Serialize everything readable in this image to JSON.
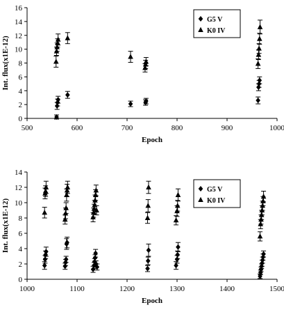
{
  "chart_data": [
    {
      "type": "scatter",
      "xlabel": "Epoch",
      "ylabel": "Int. flux(x1E-12)",
      "xlim": [
        500,
        1000
      ],
      "ylim": [
        0,
        16
      ],
      "xticks": [
        500,
        600,
        700,
        800,
        900,
        1000
      ],
      "yticks": [
        0,
        2,
        4,
        6,
        8,
        10,
        12,
        14,
        16
      ],
      "legend_position": "top-right",
      "series": [
        {
          "name": "G5 V",
          "marker": "diamond",
          "points": [
            {
              "x": 559,
              "y": 0.2,
              "err": 0.3
            },
            {
              "x": 560,
              "y": 1.8,
              "err": 0.5
            },
            {
              "x": 561,
              "y": 2.3,
              "err": 0.5
            },
            {
              "x": 562,
              "y": 2.7,
              "err": 0.5
            },
            {
              "x": 581,
              "y": 3.4,
              "err": 0.5
            },
            {
              "x": 707,
              "y": 2.1,
              "err": 0.4
            },
            {
              "x": 737,
              "y": 2.3,
              "err": 0.4
            },
            {
              "x": 738,
              "y": 2.5,
              "err": 0.4
            },
            {
              "x": 962,
              "y": 2.6,
              "err": 0.5
            },
            {
              "x": 963,
              "y": 4.5,
              "err": 0.5
            },
            {
              "x": 964,
              "y": 5.0,
              "err": 0.5
            },
            {
              "x": 965,
              "y": 5.5,
              "err": 0.5
            }
          ]
        },
        {
          "name": "K0 IV",
          "marker": "triangle",
          "points": [
            {
              "x": 558,
              "y": 8.2,
              "err": 0.8
            },
            {
              "x": 559,
              "y": 9.7,
              "err": 0.6
            },
            {
              "x": 560,
              "y": 10.3,
              "err": 0.6
            },
            {
              "x": 561,
              "y": 10.9,
              "err": 0.6
            },
            {
              "x": 562,
              "y": 11.4,
              "err": 0.8
            },
            {
              "x": 581,
              "y": 11.6,
              "err": 0.8
            },
            {
              "x": 707,
              "y": 8.9,
              "err": 0.8
            },
            {
              "x": 736,
              "y": 7.3,
              "err": 0.6
            },
            {
              "x": 737,
              "y": 7.8,
              "err": 0.6
            },
            {
              "x": 738,
              "y": 8.2,
              "err": 0.6
            },
            {
              "x": 962,
              "y": 7.9,
              "err": 0.7
            },
            {
              "x": 963,
              "y": 9.2,
              "err": 0.7
            },
            {
              "x": 964,
              "y": 10.1,
              "err": 0.7
            },
            {
              "x": 965,
              "y": 11.5,
              "err": 0.8
            },
            {
              "x": 966,
              "y": 13.2,
              "err": 1.0
            }
          ]
        }
      ]
    },
    {
      "type": "scatter",
      "xlabel": "Epoch",
      "ylabel": "Int. flux(x1E-12)",
      "xlim": [
        1000,
        1500
      ],
      "ylim": [
        0,
        14
      ],
      "xticks": [
        1000,
        1100,
        1200,
        1300,
        1400,
        1500
      ],
      "yticks": [
        0,
        2,
        4,
        6,
        8,
        10,
        12,
        14
      ],
      "legend_position": "top-right",
      "series": [
        {
          "name": "G5 V",
          "marker": "diamond",
          "points": [
            {
              "x": 1035,
              "y": 1.8,
              "err": 0.5
            },
            {
              "x": 1036,
              "y": 2.6,
              "err": 0.5
            },
            {
              "x": 1037,
              "y": 3.2,
              "err": 0.5
            },
            {
              "x": 1038,
              "y": 3.6,
              "err": 0.6
            },
            {
              "x": 1076,
              "y": 1.7,
              "err": 0.4
            },
            {
              "x": 1077,
              "y": 2.2,
              "err": 0.4
            },
            {
              "x": 1078,
              "y": 2.6,
              "err": 0.4
            },
            {
              "x": 1079,
              "y": 4.6,
              "err": 0.7
            },
            {
              "x": 1080,
              "y": 4.8,
              "err": 0.7
            },
            {
              "x": 1132,
              "y": 1.3,
              "err": 0.4
            },
            {
              "x": 1134,
              "y": 1.8,
              "err": 0.4
            },
            {
              "x": 1135,
              "y": 2.3,
              "err": 0.4
            },
            {
              "x": 1136,
              "y": 2.8,
              "err": 0.4
            },
            {
              "x": 1137,
              "y": 3.4,
              "err": 0.5
            },
            {
              "x": 1138,
              "y": 2.0,
              "err": 0.4
            },
            {
              "x": 1140,
              "y": 1.6,
              "err": 0.4
            },
            {
              "x": 1241,
              "y": 1.4,
              "err": 0.4
            },
            {
              "x": 1242,
              "y": 2.4,
              "err": 0.5
            },
            {
              "x": 1243,
              "y": 3.8,
              "err": 0.8
            },
            {
              "x": 1298,
              "y": 1.8,
              "err": 0.5
            },
            {
              "x": 1300,
              "y": 2.6,
              "err": 0.5
            },
            {
              "x": 1301,
              "y": 3.2,
              "err": 0.5
            },
            {
              "x": 1302,
              "y": 4.2,
              "err": 0.6
            },
            {
              "x": 1466,
              "y": 0.4,
              "err": 0.3
            },
            {
              "x": 1467,
              "y": 0.9,
              "err": 0.3
            },
            {
              "x": 1468,
              "y": 1.3,
              "err": 0.3
            },
            {
              "x": 1469,
              "y": 1.7,
              "err": 0.3
            },
            {
              "x": 1470,
              "y": 2.1,
              "err": 0.4
            },
            {
              "x": 1471,
              "y": 2.5,
              "err": 0.4
            },
            {
              "x": 1472,
              "y": 2.9,
              "err": 0.4
            },
            {
              "x": 1473,
              "y": 3.3,
              "err": 0.4
            }
          ]
        },
        {
          "name": "K0 IV",
          "marker": "triangle",
          "points": [
            {
              "x": 1035,
              "y": 8.7,
              "err": 0.7
            },
            {
              "x": 1036,
              "y": 11.2,
              "err": 0.7
            },
            {
              "x": 1037,
              "y": 11.5,
              "err": 0.7
            },
            {
              "x": 1038,
              "y": 12.0,
              "err": 0.8
            },
            {
              "x": 1076,
              "y": 7.8,
              "err": 0.6
            },
            {
              "x": 1077,
              "y": 8.6,
              "err": 0.7
            },
            {
              "x": 1078,
              "y": 9.3,
              "err": 0.7
            },
            {
              "x": 1079,
              "y": 11.0,
              "err": 0.8
            },
            {
              "x": 1080,
              "y": 11.6,
              "err": 0.8
            },
            {
              "x": 1081,
              "y": 12.0,
              "err": 0.8
            },
            {
              "x": 1132,
              "y": 8.1,
              "err": 0.6
            },
            {
              "x": 1133,
              "y": 8.7,
              "err": 0.6
            },
            {
              "x": 1134,
              "y": 9.2,
              "err": 0.6
            },
            {
              "x": 1135,
              "y": 9.7,
              "err": 0.6
            },
            {
              "x": 1136,
              "y": 10.3,
              "err": 0.7
            },
            {
              "x": 1137,
              "y": 11.0,
              "err": 0.7
            },
            {
              "x": 1138,
              "y": 11.6,
              "err": 0.7
            },
            {
              "x": 1139,
              "y": 9.0,
              "err": 0.6
            },
            {
              "x": 1241,
              "y": 8.0,
              "err": 0.7
            },
            {
              "x": 1242,
              "y": 9.6,
              "err": 0.8
            },
            {
              "x": 1243,
              "y": 12.0,
              "err": 0.8
            },
            {
              "x": 1298,
              "y": 7.7,
              "err": 0.6
            },
            {
              "x": 1300,
              "y": 8.9,
              "err": 0.7
            },
            {
              "x": 1301,
              "y": 9.6,
              "err": 0.7
            },
            {
              "x": 1302,
              "y": 11.0,
              "err": 0.8
            },
            {
              "x": 1466,
              "y": 5.6,
              "err": 0.6
            },
            {
              "x": 1467,
              "y": 7.2,
              "err": 0.6
            },
            {
              "x": 1468,
              "y": 7.8,
              "err": 0.6
            },
            {
              "x": 1469,
              "y": 8.4,
              "err": 0.6
            },
            {
              "x": 1470,
              "y": 9.0,
              "err": 0.6
            },
            {
              "x": 1471,
              "y": 9.6,
              "err": 0.6
            },
            {
              "x": 1472,
              "y": 10.2,
              "err": 0.6
            },
            {
              "x": 1473,
              "y": 10.8,
              "err": 0.7
            }
          ]
        }
      ]
    }
  ]
}
